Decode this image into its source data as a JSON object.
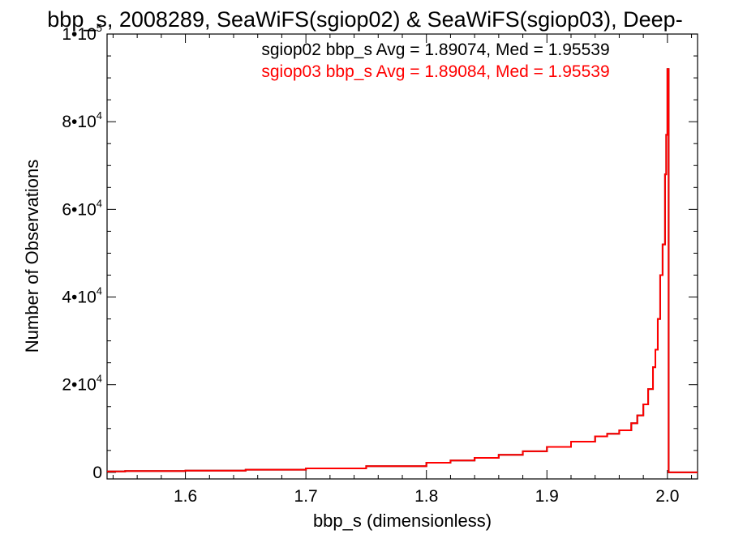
{
  "chart_data": {
    "type": "line",
    "title": "bbp_s, 2008289, SeaWiFS(sgiop02) & SeaWiFS(sgiop03), Deep-",
    "xlabel": "bbp_s (dimensionless)",
    "ylabel": "Number of Observations",
    "xlim": [
      1.535,
      2.025
    ],
    "ylim": [
      -1500,
      100000
    ],
    "x_ticks": [
      {
        "value": 1.6,
        "label": "1.6"
      },
      {
        "value": 1.7,
        "label": "1.7"
      },
      {
        "value": 1.8,
        "label": "1.8"
      },
      {
        "value": 1.9,
        "label": "1.9"
      },
      {
        "value": 2.0,
        "label": "2.0"
      }
    ],
    "y_ticks": [
      {
        "value": 0,
        "mantissa": "0",
        "exponent": ""
      },
      {
        "value": 20000,
        "mantissa": "2•10",
        "exponent": "4"
      },
      {
        "value": 40000,
        "mantissa": "4•10",
        "exponent": "4"
      },
      {
        "value": 60000,
        "mantissa": "6•10",
        "exponent": "4"
      },
      {
        "value": 80000,
        "mantissa": "8•10",
        "exponent": "4"
      },
      {
        "value": 100000,
        "mantissa": "1•10",
        "exponent": "5"
      }
    ],
    "annotations": [
      {
        "text": "sgiop02 bbp_s Avg = 1.89074, Med = 1.95539",
        "color": "#000000"
      },
      {
        "text": "sgiop03 bbp_s Avg = 1.89084, Med = 1.95539",
        "color": "#ff0000"
      }
    ],
    "series": [
      {
        "color": "#000000",
        "x": [
          1.535,
          1.55,
          1.6,
          1.65,
          1.7,
          1.75,
          1.8,
          1.82,
          1.84,
          1.86,
          1.88,
          1.9,
          1.92,
          1.94,
          1.95,
          1.96,
          1.97,
          1.975,
          1.98,
          1.984,
          1.988,
          1.99,
          1.992,
          1.994,
          1.996,
          1.998,
          1.999,
          2.0,
          2.001,
          2.003,
          2.025
        ],
        "y": [
          200,
          300,
          400,
          600,
          900,
          1400,
          2200,
          2700,
          3300,
          4000,
          4800,
          5800,
          7000,
          8200,
          8800,
          9600,
          11200,
          13000,
          15500,
          19000,
          24000,
          28000,
          35000,
          45000,
          52000,
          68000,
          77000,
          92000,
          0,
          0,
          0
        ]
      },
      {
        "color": "#ff0000",
        "x": [
          1.535,
          1.55,
          1.6,
          1.65,
          1.7,
          1.75,
          1.8,
          1.82,
          1.84,
          1.86,
          1.88,
          1.9,
          1.92,
          1.94,
          1.95,
          1.96,
          1.97,
          1.975,
          1.98,
          1.984,
          1.988,
          1.99,
          1.992,
          1.994,
          1.996,
          1.998,
          1.999,
          2.0,
          2.001,
          2.003,
          2.025
        ],
        "y": [
          200,
          300,
          400,
          600,
          900,
          1400,
          2200,
          2700,
          3300,
          4000,
          4800,
          5800,
          7000,
          8200,
          8800,
          9600,
          11200,
          13000,
          15500,
          19000,
          24000,
          28000,
          35000,
          45000,
          52000,
          68000,
          77000,
          92000,
          0,
          0,
          0
        ]
      }
    ],
    "grid": false
  }
}
